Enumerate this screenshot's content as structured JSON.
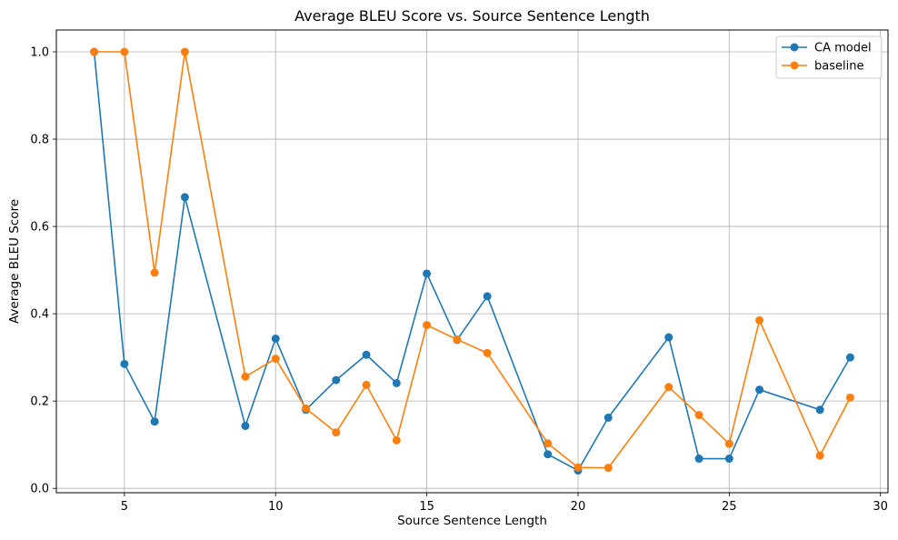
{
  "chart_data": {
    "type": "line",
    "title": "Average BLEU Score vs. Source Sentence Length",
    "xlabel": "Source Sentence Length",
    "ylabel": "Average BLEU Score",
    "xlim": [
      2.75,
      30.25
    ],
    "ylim": [
      -0.01,
      1.05
    ],
    "xticks": [
      5,
      10,
      15,
      20,
      25,
      30
    ],
    "yticks": [
      0.0,
      0.2,
      0.4,
      0.6,
      0.8,
      1.0
    ],
    "xtick_labels": [
      "5",
      "10",
      "15",
      "20",
      "25",
      "30"
    ],
    "ytick_labels": [
      "0.0",
      "0.2",
      "0.4",
      "0.6",
      "0.8",
      "1.0"
    ],
    "grid": true,
    "legend_position": "top-right",
    "series": [
      {
        "name": "CA model",
        "color": "#1f77b4",
        "marker": "circle",
        "x": [
          4,
          5,
          6,
          7,
          9,
          10,
          11,
          12,
          13,
          14,
          15,
          16,
          17,
          19,
          20,
          21,
          23,
          24,
          25,
          26,
          28,
          29
        ],
        "y": [
          1.0,
          0.285,
          0.153,
          0.667,
          0.143,
          0.343,
          0.18,
          0.248,
          0.306,
          0.241,
          0.492,
          0.34,
          0.44,
          0.078,
          0.041,
          0.162,
          0.346,
          0.068,
          0.068,
          0.226,
          0.18,
          0.3
        ]
      },
      {
        "name": "baseline",
        "color": "#ff7f0e",
        "marker": "circle",
        "x": [
          4,
          5,
          6,
          7,
          9,
          10,
          11,
          12,
          13,
          14,
          15,
          16,
          17,
          19,
          20,
          21,
          23,
          24,
          25,
          26,
          28,
          29
        ],
        "y": [
          1.0,
          1.0,
          0.494,
          1.0,
          0.256,
          0.297,
          0.183,
          0.128,
          0.237,
          0.11,
          0.374,
          0.341,
          0.31,
          0.103,
          0.048,
          0.047,
          0.232,
          0.168,
          0.102,
          0.385,
          0.075,
          0.208
        ]
      }
    ]
  }
}
